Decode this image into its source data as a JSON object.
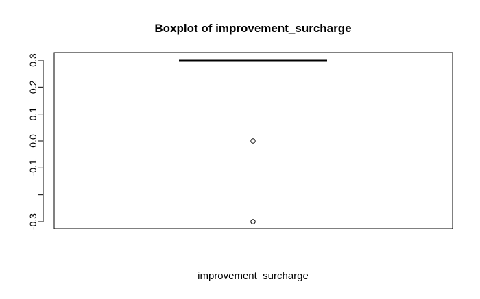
{
  "chart_data": {
    "type": "boxplot",
    "title": "Boxplot of improvement_surcharge",
    "xlabel": "improvement_surcharge",
    "ylabel": "",
    "ylim": [
      -0.3,
      0.3
    ],
    "y_ticks": [
      -0.3,
      -0.2,
      -0.1,
      0.0,
      0.1,
      0.2,
      0.3
    ],
    "y_tick_labels": [
      "-0.3",
      "",
      "-0.1",
      "0.0",
      "0.1",
      "0.2",
      "0.3"
    ],
    "grid": false,
    "box": {
      "q1": 0.3,
      "median": 0.3,
      "q3": 0.3,
      "whisker_low": 0.3,
      "whisker_high": 0.3
    },
    "outliers": [
      0.0,
      -0.3
    ],
    "colors": {
      "stroke": "#000000",
      "background": "#ffffff"
    }
  }
}
